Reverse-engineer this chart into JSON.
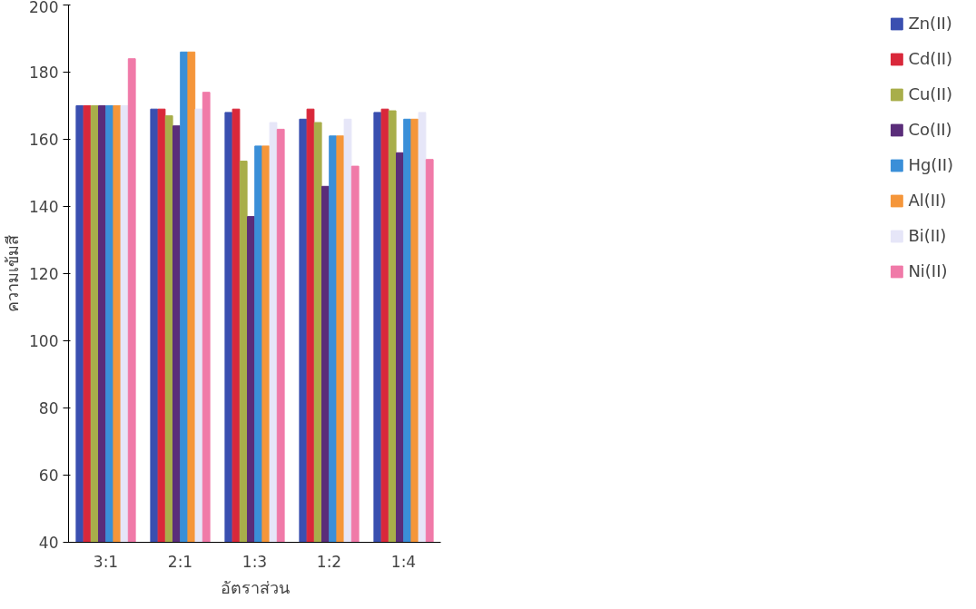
{
  "chart_data": {
    "type": "bar",
    "xlabel": "อัตราส่วน",
    "ylabel": "ความเข้มสี",
    "categories": [
      "3:1",
      "2:1",
      "1:3",
      "1:2",
      "1:4"
    ],
    "ylim": [
      40,
      200
    ],
    "yticks": [
      40,
      60,
      80,
      100,
      120,
      140,
      160,
      180,
      200
    ],
    "grid": false,
    "legend": "right",
    "series": [
      {
        "name": "Zn(II)",
        "color": "#3a4fb0",
        "values": [
          170,
          169,
          168,
          166,
          168
        ]
      },
      {
        "name": "Cd(II)",
        "color": "#d9283a",
        "values": [
          170,
          169,
          169,
          169,
          169
        ]
      },
      {
        "name": "Cu(II)",
        "color": "#a8ae4a",
        "values": [
          170,
          167,
          153.5,
          165,
          168.5
        ]
      },
      {
        "name": "Co(II)",
        "color": "#5a2d7a",
        "values": [
          170,
          164,
          137,
          146,
          156
        ]
      },
      {
        "name": "Hg(II)",
        "color": "#3a8fd8",
        "values": [
          170,
          186,
          158,
          161,
          166
        ]
      },
      {
        "name": "Al(II)",
        "color": "#f5963a",
        "values": [
          170,
          186,
          158,
          161,
          166
        ]
      },
      {
        "name": "Bi(II)",
        "color": "#e6e6f8",
        "values": [
          170,
          169,
          165,
          166,
          168
        ]
      },
      {
        "name": "Ni(II)",
        "color": "#f07aa8",
        "values": [
          184,
          174,
          163,
          152,
          154
        ]
      }
    ]
  }
}
